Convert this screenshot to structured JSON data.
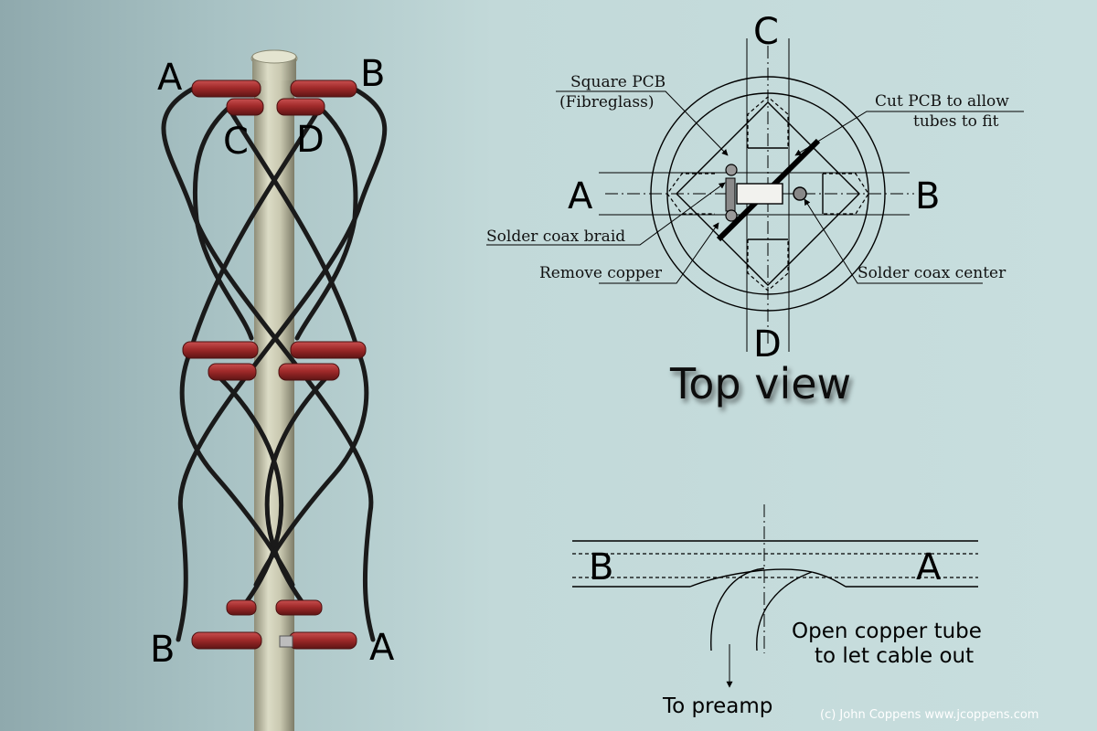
{
  "antenna_labels": {
    "top_left": "A",
    "top_right": "B",
    "inner_left": "C",
    "inner_right": "D",
    "bottom_left": "B",
    "bottom_right": "A"
  },
  "top_view": {
    "title": "Top view",
    "label_top": "C",
    "label_bottom": "D",
    "label_left": "A",
    "label_right": "B",
    "callouts": {
      "square_pcb_line1": "Square PCB",
      "square_pcb_line2": "(Fibreglass)",
      "cut_pcb_line1": "Cut PCB to allow",
      "cut_pcb_line2": "tubes to fit",
      "solder_braid": "Solder coax braid",
      "remove_copper": "Remove copper",
      "solder_center": "Solder coax center"
    }
  },
  "side_view": {
    "label_left": "B",
    "label_right": "A",
    "note_line1": "Open copper tube",
    "note_line2": "to let cable out",
    "arrow_label": "To preamp"
  },
  "credit": "(c) John Coppens www.jcoppens.com",
  "colors": {
    "tube": "#a02a2a",
    "mast": "#c6c5ad",
    "background": "#c2d9d9"
  }
}
